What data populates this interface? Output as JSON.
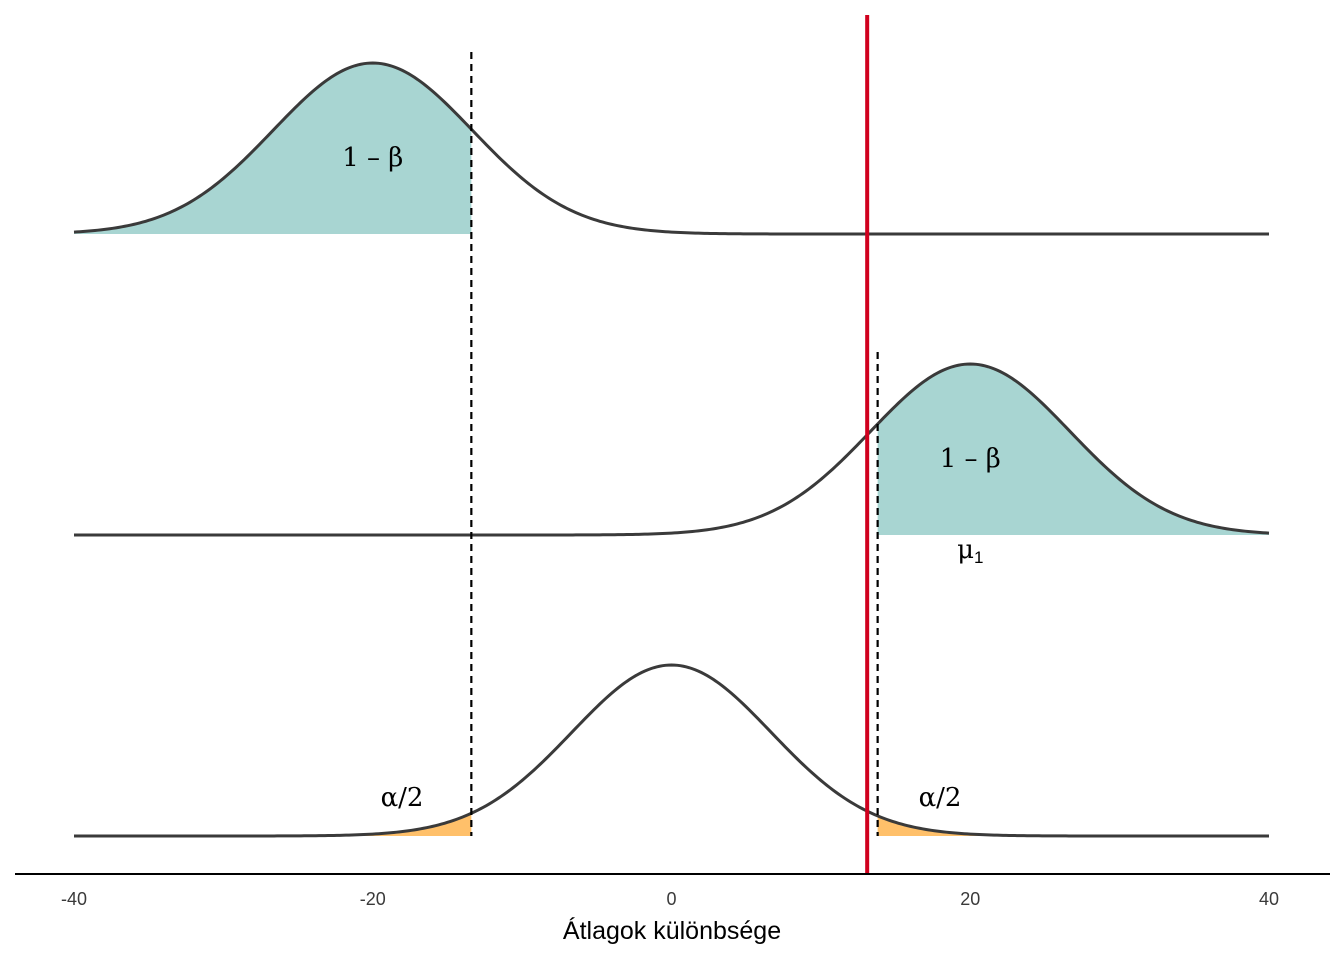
{
  "chart_data": {
    "type": "area",
    "xlabel": "Átlagok különbsége",
    "ylabel": "",
    "xlim": [
      -40,
      40
    ],
    "x_ticks": [
      -40,
      -20,
      0,
      20,
      40
    ],
    "x_tick_labels": [
      "-40",
      "-20",
      "0",
      "20",
      "40"
    ],
    "grid": false,
    "series": [
      {
        "mean": -20,
        "sd": 6.67,
        "shade": "left",
        "cut": -13.4,
        "label_text": "1 – β"
      },
      {
        "mean": 20,
        "sd": 6.67,
        "shade": "right",
        "cut": 13.8,
        "label_text": "1 – β",
        "sub_label": "μ",
        "sub_label_index": "1"
      },
      {
        "mean": 0,
        "sd": 6.67,
        "shade": "tails",
        "cut_low": -13.4,
        "cut_high": 13.8,
        "label_left": "α/2",
        "label_right": "α/2"
      }
    ],
    "dashed_lines": [
      -13.4,
      13.8
    ],
    "red_line": 13.1,
    "colors": {
      "curve": "#3a3a3a",
      "power_fill": "#a8d5d2",
      "alpha_fill": "#ffc06a",
      "red_line": "#d0001e",
      "axis": "#000000"
    }
  }
}
